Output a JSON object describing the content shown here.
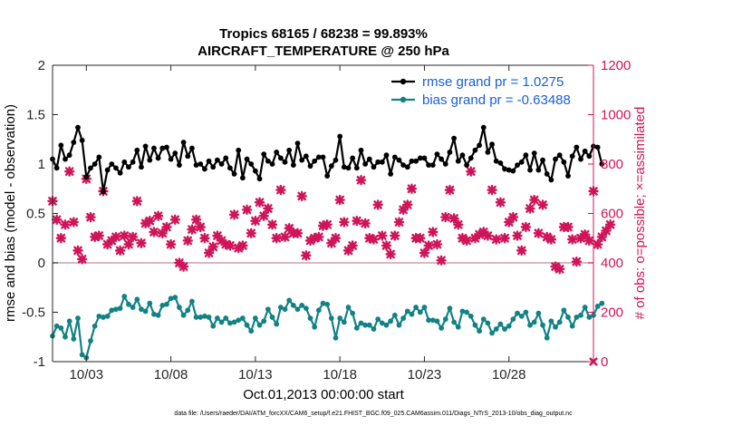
{
  "colors": {
    "rmse": "#000000",
    "bias": "#138284",
    "obs": "#d0145a",
    "zero_line": "#c8a2a8",
    "legend_text": "#1a5fd6",
    "axis": "#262626"
  },
  "chart_data": {
    "type": "line",
    "title": "Tropics 68165 / 68238 = 99.893%",
    "subtitle": "AIRCRAFT_TEMPERATURE @ 250 hPa",
    "xlabel": "Oct.01,2013 00:00:00 start",
    "ylabel": "rmse and bias (model - observation)",
    "y2label": "# of obs: o=possible; ×=assimilated",
    "xlim": [
      1,
      33
    ],
    "ylim": [
      -1,
      2
    ],
    "y2lim": [
      0,
      1200
    ],
    "x_ticks": [
      3,
      8,
      13,
      18,
      23,
      28
    ],
    "x_tick_labels": [
      "10/03",
      "10/08",
      "10/13",
      "10/18",
      "10/23",
      "10/28"
    ],
    "y_ticks": [
      -1,
      -0.5,
      0,
      0.5,
      1,
      1.5,
      2
    ],
    "y_tick_labels": [
      "-1",
      "-0.5",
      "0",
      "0.5",
      "1",
      "1.5",
      "2"
    ],
    "y2_ticks": [
      0,
      200,
      400,
      600,
      800,
      1000,
      1200
    ],
    "y2_tick_labels": [
      "0",
      "200",
      "400",
      "600",
      "800",
      "1000",
      "1200"
    ],
    "legend_placement": "top-right",
    "x_start": 1,
    "x_step": 0.25,
    "series": [
      {
        "name": "rmse grand pr = 1.0275",
        "axis": "left",
        "style": "line-dot",
        "values": [
          1.05,
          0.96,
          1.19,
          1.05,
          1.09,
          1.22,
          1.37,
          1.24,
          0.87,
          0.96,
          1.0,
          1.07,
          0.72,
          0.94,
          1.0,
          0.96,
          0.91,
          1.02,
          0.97,
          1.02,
          1.14,
          0.97,
          1.18,
          1.04,
          1.16,
          1.06,
          1.16,
          1.17,
          1.05,
          1.11,
          0.99,
          1.22,
          1.08,
          1.16,
          0.99,
          1.0,
          0.95,
          1.03,
          0.97,
          1.04,
          1.0,
          1.06,
          0.96,
          0.9,
          1.14,
          0.86,
          1.05,
          1.0,
          0.93,
          0.85,
          1.1,
          1.03,
          1.0,
          1.12,
          1.06,
          1.02,
          1.14,
          0.99,
          1.21,
          1.04,
          1.08,
          0.98,
          1.03,
          1.07,
          1.07,
          0.88,
          0.98,
          1.04,
          1.28,
          0.97,
          0.96,
          1.06,
          0.96,
          1.14,
          1.0,
          1.05,
          0.97,
          1.02,
          1.02,
          1.09,
          0.9,
          1.07,
          1.04,
          0.99,
          0.97,
          1.03,
          1.03,
          1.06,
          1.06,
          0.99,
          0.99,
          1.1,
          1.05,
          1.0,
          1.12,
          1.26,
          1.03,
          1.09,
          0.99,
          1.06,
          1.14,
          1.19,
          1.37,
          1.12,
          1.2,
          1.03,
          1.01,
          0.95,
          0.94,
          0.93,
          0.99,
          1.02,
          1.09,
          0.94,
          1.11,
          0.94,
          1.04,
          0.9,
          0.84,
          1.05,
          1.09,
          1.02,
          0.88,
          1.08,
          1.17,
          1.05,
          1.13,
          1.08,
          1.18,
          1.17,
          1.0
        ]
      },
      {
        "name": "bias grand pr = -0.63488",
        "axis": "left",
        "style": "line-dot",
        "values": [
          -0.74,
          -0.64,
          -0.66,
          -0.75,
          -0.59,
          -0.77,
          -0.56,
          -0.93,
          -0.96,
          -0.79,
          -0.64,
          -0.54,
          -0.55,
          -0.54,
          -0.48,
          -0.47,
          -0.46,
          -0.34,
          -0.42,
          -0.45,
          -0.37,
          -0.47,
          -0.49,
          -0.41,
          -0.52,
          -0.53,
          -0.43,
          -0.42,
          -0.36,
          -0.35,
          -0.45,
          -0.53,
          -0.48,
          -0.39,
          -0.55,
          -0.55,
          -0.54,
          -0.55,
          -0.64,
          -0.56,
          -0.6,
          -0.56,
          -0.61,
          -0.6,
          -0.58,
          -0.56,
          -0.63,
          -0.69,
          -0.56,
          -0.63,
          -0.59,
          -0.47,
          -0.55,
          -0.62,
          -0.45,
          -0.47,
          -0.38,
          -0.43,
          -0.47,
          -0.43,
          -0.46,
          -0.56,
          -0.65,
          -0.48,
          -0.41,
          -0.42,
          -0.56,
          -0.76,
          -0.56,
          -0.6,
          -0.45,
          -0.51,
          -0.66,
          -0.61,
          -0.63,
          -0.63,
          -0.67,
          -0.57,
          -0.61,
          -0.63,
          -0.59,
          -0.53,
          -0.63,
          -0.56,
          -0.49,
          -0.52,
          -0.45,
          -0.5,
          -0.45,
          -0.58,
          -0.58,
          -0.59,
          -0.66,
          -0.57,
          -0.46,
          -0.6,
          -0.65,
          -0.49,
          -0.5,
          -0.54,
          -0.63,
          -0.69,
          -0.57,
          -0.61,
          -0.71,
          -0.67,
          -0.62,
          -0.67,
          -0.64,
          -0.57,
          -0.51,
          -0.54,
          -0.5,
          -0.63,
          -0.6,
          -0.51,
          -0.63,
          -0.76,
          -0.59,
          -0.65,
          -0.6,
          -0.48,
          -0.55,
          -0.64,
          -0.55,
          -0.53,
          -0.45,
          -0.55,
          -0.53,
          -0.44,
          -0.41
        ]
      },
      {
        "name": "# of obs assimilated",
        "axis": "right",
        "style": "markers",
        "values": [
          650,
          575,
          500,
          555,
          770,
          565,
          450,
          415,
          740,
          585,
          505,
          510,
          690,
          475,
          490,
          505,
          450,
          510,
          475,
          505,
          650,
          480,
          560,
          570,
          525,
          590,
          520,
          545,
          475,
          575,
          400,
          385,
          490,
          535,
          575,
          545,
          500,
          440,
          465,
          510,
          490,
          475,
          470,
          595,
          460,
          470,
          615,
          520,
          570,
          645,
          590,
          620,
          555,
          500,
          695,
          505,
          540,
          520,
          520,
          670,
          430,
          490,
          500,
          505,
          550,
          555,
          480,
          500,
          655,
          565,
          450,
          470,
          570,
          735,
          560,
          500,
          495,
          635,
          510,
          470,
          435,
          510,
          565,
          615,
          635,
          700,
          500,
          500,
          440,
          470,
          525,
          475,
          410,
          585,
          695,
          580,
          555,
          500,
          490,
          770,
          500,
          515,
          525,
          510,
          695,
          495,
          645,
          500,
          565,
          585,
          510,
          450,
          545,
          620,
          655,
          520,
          635,
          505,
          495,
          385,
          375,
          545,
          545,
          495,
          405,
          500,
          515,
          490,
          690,
          475,
          505,
          530,
          555
        ]
      }
    ],
    "footnote": "data file: /Users/raeder/DAI/ATM_forcXX/CAM6_setup/f.e21.FHIST_BGC.f09_025.CAM6assim.011/Diags_NTrS_2013-10/obs_diag_output.nc"
  }
}
